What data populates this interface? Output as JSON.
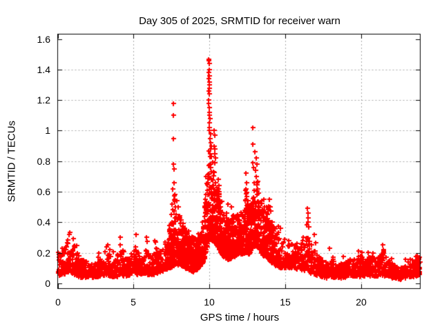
{
  "chart_data": {
    "type": "scatter",
    "title": "Day 305 of 2025, SRMTID for receiver warn",
    "xlabel": "GPS time / hours",
    "ylabel": "SRMTID / TECUs",
    "marker": "plus",
    "marker_color": "#ff0000",
    "text_color": "#000000",
    "background_color": "#ffffff",
    "grid": true,
    "grid_color": "#a8a8a8",
    "xlim": [
      0,
      23.87
    ],
    "ylim": [
      -0.035,
      1.635
    ],
    "xticks": {
      "values": [
        0,
        5,
        10,
        15,
        20
      ],
      "labels": [
        "0",
        "5",
        "10",
        "15",
        "20"
      ]
    },
    "yticks": {
      "values": [
        0,
        0.2,
        0.4,
        0.6,
        0.8,
        1.0,
        1.2,
        1.4,
        1.6
      ],
      "labels": [
        "0",
        "0.2",
        "0.4",
        "0.6",
        "0.8",
        "1",
        "1.2",
        "1.4",
        "1.6"
      ]
    },
    "sampling": {
      "n_points": 3400,
      "t_start": 0.01,
      "t_end": 23.85,
      "seed": 305,
      "bias_exp": 1.7,
      "dense_window": [
        7.2,
        14.2
      ],
      "dense_fraction": 0.25
    },
    "envelope": [
      [
        0.02,
        0.05,
        0.22
      ],
      [
        0.3,
        0.06,
        0.2
      ],
      [
        0.55,
        0.07,
        0.26
      ],
      [
        0.75,
        0.08,
        0.3
      ],
      [
        1.0,
        0.06,
        0.27
      ],
      [
        1.25,
        0.05,
        0.22
      ],
      [
        1.6,
        0.04,
        0.16
      ],
      [
        2.0,
        0.04,
        0.13
      ],
      [
        2.4,
        0.04,
        0.12
      ],
      [
        2.7,
        0.05,
        0.17
      ],
      [
        3.0,
        0.05,
        0.14
      ],
      [
        3.3,
        0.06,
        0.22
      ],
      [
        3.6,
        0.05,
        0.15
      ],
      [
        3.9,
        0.05,
        0.18
      ],
      [
        4.1,
        0.06,
        0.24
      ],
      [
        4.4,
        0.05,
        0.16
      ],
      [
        4.8,
        0.06,
        0.17
      ],
      [
        5.1,
        0.07,
        0.24
      ],
      [
        5.3,
        0.06,
        0.2
      ],
      [
        5.6,
        0.06,
        0.17
      ],
      [
        5.85,
        0.07,
        0.24
      ],
      [
        6.1,
        0.05,
        0.17
      ],
      [
        6.4,
        0.07,
        0.24
      ],
      [
        6.7,
        0.07,
        0.2
      ],
      [
        7.0,
        0.09,
        0.24
      ],
      [
        7.3,
        0.1,
        0.3
      ],
      [
        7.6,
        0.12,
        0.55
      ],
      [
        7.8,
        0.13,
        0.5
      ],
      [
        8.1,
        0.12,
        0.42
      ],
      [
        8.5,
        0.1,
        0.33
      ],
      [
        8.9,
        0.08,
        0.28
      ],
      [
        9.3,
        0.1,
        0.3
      ],
      [
        9.6,
        0.14,
        0.38
      ],
      [
        9.85,
        0.25,
        0.8
      ],
      [
        10.05,
        0.3,
        0.85
      ],
      [
        10.25,
        0.28,
        0.75
      ],
      [
        10.5,
        0.25,
        0.62
      ],
      [
        10.75,
        0.2,
        0.55
      ],
      [
        11.0,
        0.17,
        0.45
      ],
      [
        11.3,
        0.16,
        0.42
      ],
      [
        11.6,
        0.18,
        0.45
      ],
      [
        11.9,
        0.2,
        0.46
      ],
      [
        12.2,
        0.2,
        0.5
      ],
      [
        12.4,
        0.2,
        0.6
      ],
      [
        12.6,
        0.2,
        0.48
      ],
      [
        12.9,
        0.24,
        0.6
      ],
      [
        13.1,
        0.25,
        0.68
      ],
      [
        13.35,
        0.2,
        0.55
      ],
      [
        13.65,
        0.18,
        0.48
      ],
      [
        13.95,
        0.15,
        0.45
      ],
      [
        14.2,
        0.13,
        0.38
      ],
      [
        14.5,
        0.11,
        0.33
      ],
      [
        14.9,
        0.1,
        0.3
      ],
      [
        15.3,
        0.1,
        0.27
      ],
      [
        15.7,
        0.1,
        0.26
      ],
      [
        16.1,
        0.08,
        0.24
      ],
      [
        16.45,
        0.1,
        0.35
      ],
      [
        16.65,
        0.07,
        0.3
      ],
      [
        16.9,
        0.06,
        0.25
      ],
      [
        17.2,
        0.05,
        0.17
      ],
      [
        17.6,
        0.04,
        0.14
      ],
      [
        17.95,
        0.05,
        0.18
      ],
      [
        18.3,
        0.04,
        0.13
      ],
      [
        18.7,
        0.04,
        0.13
      ],
      [
        19.1,
        0.05,
        0.15
      ],
      [
        19.5,
        0.05,
        0.17
      ],
      [
        19.85,
        0.05,
        0.19
      ],
      [
        20.2,
        0.05,
        0.16
      ],
      [
        20.6,
        0.05,
        0.19
      ],
      [
        21.0,
        0.05,
        0.16
      ],
      [
        21.35,
        0.06,
        0.21
      ],
      [
        21.7,
        0.05,
        0.16
      ],
      [
        22.1,
        0.04,
        0.13
      ],
      [
        22.5,
        0.03,
        0.1
      ],
      [
        22.9,
        0.04,
        0.12
      ],
      [
        23.3,
        0.05,
        0.15
      ],
      [
        23.6,
        0.05,
        0.17
      ],
      [
        23.85,
        0.06,
        0.18
      ]
    ],
    "outlier_points": [
      [
        0.75,
        0.32
      ],
      [
        2.7,
        0.2
      ],
      [
        3.3,
        0.25
      ],
      [
        4.1,
        0.3
      ],
      [
        5.15,
        0.32
      ],
      [
        5.85,
        0.3
      ],
      [
        6.4,
        0.28
      ],
      [
        7.35,
        0.38
      ],
      [
        7.5,
        0.45
      ],
      [
        7.58,
        0.62
      ],
      [
        7.6,
        1.18
      ],
      [
        7.61,
        1.1
      ],
      [
        7.62,
        0.78
      ],
      [
        7.63,
        0.95
      ],
      [
        7.64,
        0.75
      ],
      [
        7.66,
        0.66
      ],
      [
        7.7,
        0.58
      ],
      [
        7.72,
        0.55
      ],
      [
        9.92,
        1.2
      ],
      [
        9.93,
        1.47
      ],
      [
        9.94,
        1.38
      ],
      [
        9.94,
        1.26
      ],
      [
        9.95,
        1.46
      ],
      [
        9.95,
        1.34
      ],
      [
        9.95,
        1.18
      ],
      [
        9.96,
        1.4
      ],
      [
        9.96,
        1.28
      ],
      [
        9.96,
        1.05
      ],
      [
        9.97,
        1.44
      ],
      [
        9.97,
        1.32
      ],
      [
        9.97,
        1.12
      ],
      [
        9.98,
        1.36
      ],
      [
        9.98,
        1.24
      ],
      [
        9.98,
        1.02
      ],
      [
        9.99,
        1.3
      ],
      [
        9.99,
        1.1
      ],
      [
        10.0,
        1.15
      ],
      [
        10.0,
        1.0
      ],
      [
        10.02,
        1.08
      ],
      [
        10.03,
        0.95
      ],
      [
        10.04,
        0.85
      ],
      [
        10.05,
        0.98
      ],
      [
        10.06,
        0.88
      ],
      [
        10.08,
        0.92
      ],
      [
        10.1,
        0.9
      ],
      [
        10.12,
        0.83
      ],
      [
        10.3,
        0.9
      ],
      [
        10.32,
        1.0
      ],
      [
        10.33,
        0.85
      ],
      [
        10.34,
        0.79
      ],
      [
        10.35,
        0.97
      ],
      [
        10.36,
        0.88
      ],
      [
        10.38,
        0.82
      ],
      [
        10.55,
        0.68
      ],
      [
        10.6,
        0.64
      ],
      [
        11.2,
        0.52
      ],
      [
        11.45,
        0.5
      ],
      [
        12.38,
        0.72
      ],
      [
        12.4,
        0.62
      ],
      [
        12.42,
        0.66
      ],
      [
        12.45,
        0.57
      ],
      [
        12.83,
        0.79
      ],
      [
        12.84,
        1.02
      ],
      [
        12.86,
        0.91
      ],
      [
        12.87,
        0.76
      ],
      [
        13.0,
        0.86
      ],
      [
        13.04,
        0.74
      ],
      [
        13.05,
        0.82
      ],
      [
        13.08,
        0.7
      ],
      [
        13.1,
        0.78
      ],
      [
        13.12,
        0.66
      ],
      [
        13.15,
        0.62
      ],
      [
        13.55,
        0.55
      ],
      [
        13.6,
        0.5
      ],
      [
        13.95,
        0.55
      ],
      [
        14.0,
        0.5
      ],
      [
        16.44,
        0.49
      ],
      [
        16.46,
        0.4
      ],
      [
        16.48,
        0.46
      ],
      [
        16.5,
        0.43
      ],
      [
        16.52,
        0.37
      ],
      [
        16.9,
        0.32
      ],
      [
        17.9,
        0.23
      ],
      [
        19.8,
        0.21
      ],
      [
        20.75,
        0.2
      ],
      [
        21.4,
        0.25
      ],
      [
        21.45,
        0.22
      ]
    ]
  }
}
